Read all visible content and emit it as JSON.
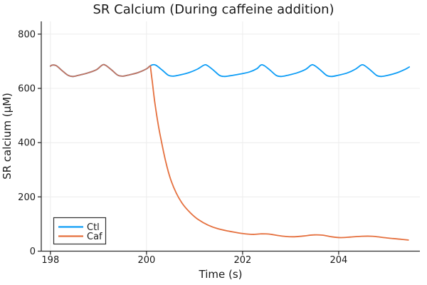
{
  "chart_data": {
    "type": "line",
    "title": "SR Calcium (During caffeine addition)",
    "xlabel": "Time (s)",
    "ylabel": "SR calcium (μM)",
    "xlim": [
      197.81,
      205.69
    ],
    "ylim": [
      0,
      847
    ],
    "xticks": [
      198,
      200,
      202,
      204
    ],
    "yticks": [
      0,
      200,
      400,
      600,
      800
    ],
    "grid": true,
    "legend": {
      "position": "bottom-left",
      "entries": [
        "Ctl",
        "Caf"
      ]
    },
    "colors": {
      "ctl_line": "#0d9df6",
      "caf_line": "#e5703e",
      "overlap_blend": "#c3735f",
      "axis": "#2f2f2f",
      "gridline": "#ececec",
      "text": "#1a1a1a",
      "background": "#ffffff"
    },
    "series": [
      {
        "name": "Ctl",
        "color": "#0d9df6",
        "points": [
          [
            198.0,
            682
          ],
          [
            198.04,
            686
          ],
          [
            198.12,
            684
          ],
          [
            198.24,
            666
          ],
          [
            198.36,
            649
          ],
          [
            198.46,
            644
          ],
          [
            198.58,
            648
          ],
          [
            198.78,
            657
          ],
          [
            198.96,
            669
          ],
          [
            199.08,
            686
          ],
          [
            199.15,
            685
          ],
          [
            199.28,
            667
          ],
          [
            199.4,
            649
          ],
          [
            199.5,
            645
          ],
          [
            199.62,
            649
          ],
          [
            199.82,
            658
          ],
          [
            200.0,
            672
          ],
          [
            200.06,
            681
          ],
          [
            200.13,
            687
          ],
          [
            200.2,
            685
          ],
          [
            200.33,
            667
          ],
          [
            200.45,
            649
          ],
          [
            200.55,
            645
          ],
          [
            200.68,
            649
          ],
          [
            200.88,
            658
          ],
          [
            201.06,
            671
          ],
          [
            201.2,
            686
          ],
          [
            201.27,
            684
          ],
          [
            201.4,
            666
          ],
          [
            201.52,
            648
          ],
          [
            201.62,
            644
          ],
          [
            201.75,
            647
          ],
          [
            201.95,
            653
          ],
          [
            202.15,
            661
          ],
          [
            202.3,
            673
          ],
          [
            202.38,
            686
          ],
          [
            202.45,
            684
          ],
          [
            202.58,
            666
          ],
          [
            202.7,
            648
          ],
          [
            202.8,
            644
          ],
          [
            202.93,
            648
          ],
          [
            203.13,
            657
          ],
          [
            203.31,
            670
          ],
          [
            203.43,
            686
          ],
          [
            203.5,
            684
          ],
          [
            203.63,
            666
          ],
          [
            203.75,
            648
          ],
          [
            203.85,
            644
          ],
          [
            203.98,
            648
          ],
          [
            204.18,
            657
          ],
          [
            204.35,
            671
          ],
          [
            204.47,
            686
          ],
          [
            204.54,
            684
          ],
          [
            204.67,
            666
          ],
          [
            204.79,
            648
          ],
          [
            204.89,
            644
          ],
          [
            205.02,
            648
          ],
          [
            205.22,
            658
          ],
          [
            205.38,
            670
          ],
          [
            205.47,
            679
          ]
        ]
      },
      {
        "name": "Caf",
        "color": "#e5703e",
        "overlap_until": 200.08,
        "points": [
          [
            198.0,
            682
          ],
          [
            198.04,
            686
          ],
          [
            198.12,
            684
          ],
          [
            198.24,
            666
          ],
          [
            198.36,
            649
          ],
          [
            198.46,
            644
          ],
          [
            198.58,
            648
          ],
          [
            198.78,
            657
          ],
          [
            198.96,
            669
          ],
          [
            199.08,
            686
          ],
          [
            199.15,
            685
          ],
          [
            199.28,
            667
          ],
          [
            199.4,
            649
          ],
          [
            199.5,
            645
          ],
          [
            199.62,
            649
          ],
          [
            199.82,
            658
          ],
          [
            200.0,
            672
          ],
          [
            200.06,
            681
          ],
          [
            200.08,
            683
          ],
          [
            200.12,
            625
          ],
          [
            200.17,
            552
          ],
          [
            200.24,
            470
          ],
          [
            200.31,
            405
          ],
          [
            200.4,
            330
          ],
          [
            200.5,
            266
          ],
          [
            200.62,
            214
          ],
          [
            200.76,
            172
          ],
          [
            200.92,
            140
          ],
          [
            201.08,
            116
          ],
          [
            201.28,
            96
          ],
          [
            201.48,
            83
          ],
          [
            201.7,
            74
          ],
          [
            201.92,
            67
          ],
          [
            202.1,
            63
          ],
          [
            202.25,
            62
          ],
          [
            202.4,
            64
          ],
          [
            202.55,
            63
          ],
          [
            202.72,
            58
          ],
          [
            202.9,
            54
          ],
          [
            203.08,
            53
          ],
          [
            203.28,
            56
          ],
          [
            203.48,
            60
          ],
          [
            203.66,
            59
          ],
          [
            203.85,
            53
          ],
          [
            204.05,
            50
          ],
          [
            204.25,
            52
          ],
          [
            204.48,
            55
          ],
          [
            204.7,
            55
          ],
          [
            204.9,
            51
          ],
          [
            205.1,
            47
          ],
          [
            205.28,
            44
          ],
          [
            205.45,
            41
          ]
        ]
      }
    ]
  }
}
